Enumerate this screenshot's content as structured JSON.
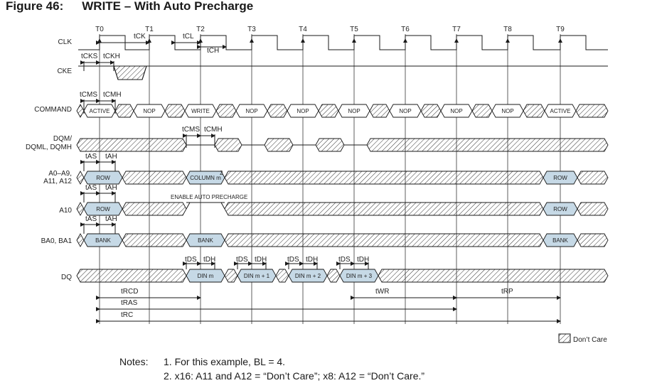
{
  "figure": {
    "number": "Figure 46:",
    "title": "WRITE – With Auto Precharge"
  },
  "clock_labels": [
    "T0",
    "T1",
    "T2",
    "T3",
    "T4",
    "T5",
    "T6",
    "T7",
    "T8",
    "T9"
  ],
  "signals": {
    "clk": "CLK",
    "cke": "CKE",
    "command": "COMMAND",
    "dqm_1": "DQM/",
    "dqm_2": "DQML, DQMH",
    "addr_1": "A0–A9,",
    "addr_2": "A11, A12",
    "a10": "A10",
    "ba": "BA0, BA1",
    "dq": "DQ"
  },
  "commands": [
    "ACTIVE",
    "NOP",
    "WRITE",
    "NOP",
    "NOP",
    "NOP",
    "NOP",
    "NOP",
    "NOP",
    "ACTIVE"
  ],
  "address_values": {
    "row": "ROW",
    "column": "COLUMN m",
    "column_note": "2",
    "row_end": "ROW"
  },
  "a10_values": {
    "row": "ROW",
    "annotation": "ENABLE AUTO PRECHARGE",
    "row_end": "ROW"
  },
  "bank_values": {
    "bank1": "BANK",
    "bank2": "BANK",
    "bank3": "BANK"
  },
  "dq_values": [
    "DIN m",
    "DIN m + 1",
    "DIN m + 2",
    "DIN m + 3"
  ],
  "timing_labels": {
    "tck": "tCK",
    "tcl": "tCL",
    "tch": "tCH",
    "tcks": "tCKS",
    "tckh": "tCKH",
    "tcms": "tCMS",
    "tcmh": "tCMH",
    "tas": "tAS",
    "tah": "tAH",
    "tds": "tDS",
    "tdh": "tDH",
    "trcd": "tRCD",
    "tras": "tRAS",
    "trc": "tRC",
    "twr": "tWR",
    "trp": "tRP"
  },
  "legend": {
    "dont_care": "Don’t Care"
  },
  "notes": {
    "label": "Notes:",
    "items": [
      "1.  For this example, BL = 4.",
      "2.  x16: A11 and A12 = “Don’t Care”; x8: A12 = “Don’t Care.”"
    ]
  },
  "colors": {
    "valid_fill": "#c6d9e6",
    "line": "#1a1a1a"
  }
}
